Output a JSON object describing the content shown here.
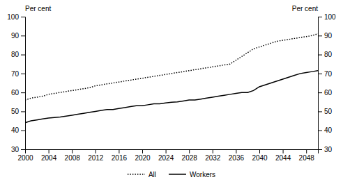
{
  "chart_data": {
    "type": "line",
    "x": [
      2000,
      2001,
      2002,
      2003,
      2004,
      2005,
      2006,
      2007,
      2008,
      2009,
      2010,
      2011,
      2012,
      2013,
      2014,
      2015,
      2016,
      2017,
      2018,
      2019,
      2020,
      2021,
      2022,
      2023,
      2024,
      2025,
      2026,
      2027,
      2028,
      2029,
      2030,
      2031,
      2032,
      2033,
      2034,
      2035,
      2036,
      2037,
      2038,
      2039,
      2040,
      2041,
      2042,
      2043,
      2044,
      2045,
      2046,
      2047,
      2048,
      2049,
      2050
    ],
    "series": [
      {
        "name": "All",
        "color": "#000000",
        "line_style": "dotted",
        "values": [
          56,
          57,
          57.5,
          58,
          59,
          59.5,
          60,
          60.5,
          61,
          61.5,
          62,
          62.5,
          63.5,
          64,
          64.5,
          65,
          65.5,
          66,
          66.5,
          67,
          67.5,
          68,
          68.5,
          69,
          69.5,
          70,
          70.5,
          71,
          71.5,
          72,
          72.5,
          73,
          73.5,
          74,
          74.5,
          75,
          77,
          79,
          81,
          83,
          84,
          85,
          86,
          87,
          87.5,
          88,
          88.5,
          89,
          89.5,
          90,
          91
        ]
      },
      {
        "name": "Workers",
        "color": "#000000",
        "line_style": "solid",
        "values": [
          44,
          45,
          45.5,
          46,
          46.5,
          46.8,
          47,
          47.5,
          48,
          48.5,
          49,
          49.5,
          50,
          50.5,
          51,
          51,
          51.5,
          52,
          52.5,
          53,
          53,
          53.5,
          54,
          54,
          54.5,
          54.8,
          55,
          55.5,
          56,
          56,
          56.5,
          57,
          57.5,
          58,
          58.5,
          59,
          59.5,
          60,
          60,
          61,
          63,
          64,
          65,
          66,
          67,
          68,
          69,
          70,
          70.5,
          71,
          71.5
        ]
      }
    ],
    "xlim": [
      2000,
      2050
    ],
    "xticks": [
      2000,
      2004,
      2008,
      2012,
      2016,
      2020,
      2024,
      2028,
      2032,
      2036,
      2040,
      2044,
      2048
    ],
    "ylim": [
      30,
      100
    ],
    "yticks": [
      30,
      40,
      50,
      60,
      70,
      80,
      90,
      100
    ],
    "y2lim": [
      30,
      100
    ],
    "y2ticks": [
      30,
      40,
      50,
      60,
      70,
      80,
      90,
      100
    ],
    "ylabel": "Per cent",
    "y2label": "Per cent",
    "legend": "bottom"
  }
}
